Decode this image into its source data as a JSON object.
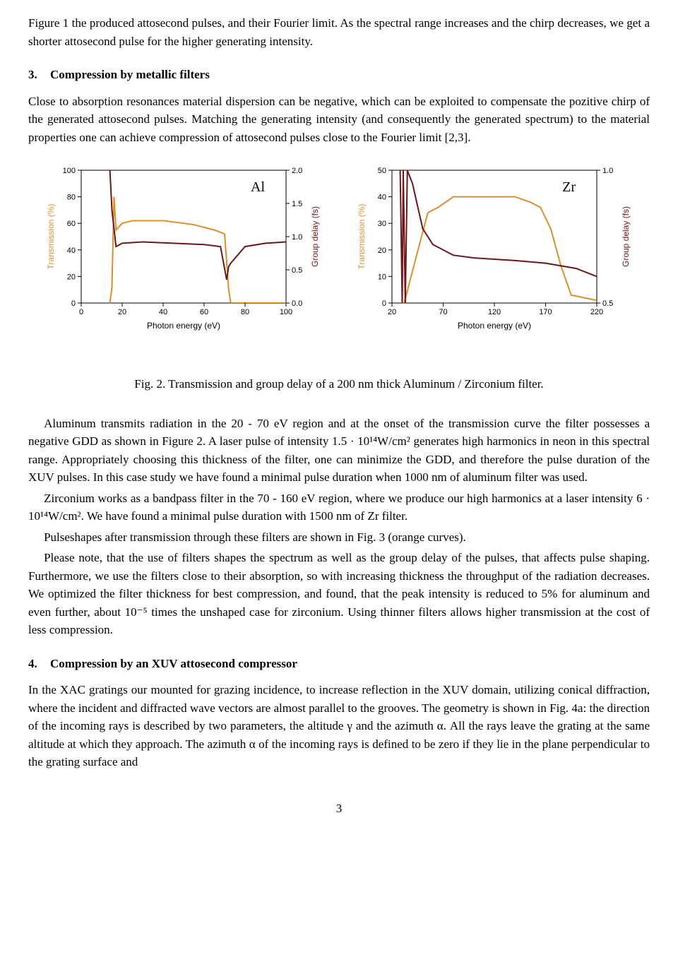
{
  "intro_paragraph": "Figure 1 the produced attosecond pulses, and their Fourier limit. As the spectral range increases and the chirp decreases, we get a shorter attosecond pulse for the higher generating intensity.",
  "section3": {
    "number": "3.",
    "title": "Compression by metallic filters",
    "body": "Close to absorption resonances material dispersion can be negative, which can be exploited to compensate the pozitive chirp of the generated attosecond pulses. Matching the generating intensity (and consequently the generated spectrum) to the material properties one can achieve compression of attosecond pulses close to the Fourier limit [2,3]."
  },
  "figure2": {
    "caption": "Fig. 2. Transmission and group delay of a 200 nm thick Aluminum / Zirconium filter.",
    "x_axis_label": "Photon energy (eV)",
    "y_left_label": "Transmission (%)",
    "y_right_label": "Group delay (fs)",
    "plot_bg": "#ffffff",
    "axis_color": "#000000",
    "transmission_color": "#d98f2e",
    "groupdelay_color": "#6a1818",
    "charts": {
      "Al": {
        "material_label": "Al",
        "xlim": [
          0,
          100
        ],
        "xticks": [
          0,
          20,
          40,
          60,
          80,
          100
        ],
        "y_left_lim": [
          0,
          100
        ],
        "y_left_ticks": [
          0,
          20,
          40,
          60,
          80,
          100
        ],
        "y_right_lim": [
          0.0,
          2.0
        ],
        "y_right_ticks": [
          0.0,
          0.5,
          1.0,
          1.5,
          2.0
        ],
        "transmission_xy": [
          [
            14,
            0
          ],
          [
            15,
            12
          ],
          [
            16,
            80
          ],
          [
            17,
            55
          ],
          [
            20,
            60
          ],
          [
            25,
            62
          ],
          [
            40,
            62
          ],
          [
            55,
            59
          ],
          [
            65,
            55
          ],
          [
            70,
            52
          ],
          [
            72,
            10
          ],
          [
            73,
            0
          ],
          [
            100,
            0
          ]
        ],
        "groupdelay_xy": [
          [
            14,
            2.0
          ],
          [
            15,
            1.4
          ],
          [
            17,
            0.85
          ],
          [
            20,
            0.9
          ],
          [
            30,
            0.92
          ],
          [
            45,
            0.9
          ],
          [
            60,
            0.88
          ],
          [
            68,
            0.85
          ],
          [
            71,
            0.35
          ],
          [
            72,
            0.55
          ],
          [
            73,
            0.6
          ],
          [
            80,
            0.85
          ],
          [
            90,
            0.9
          ],
          [
            100,
            0.92
          ]
        ]
      },
      "Zr": {
        "material_label": "Zr",
        "xlim": [
          20,
          220
        ],
        "xticks": [
          20,
          70,
          120,
          170,
          220
        ],
        "y_left_lim": [
          0,
          50
        ],
        "y_left_ticks": [
          0,
          10,
          20,
          30,
          40,
          50
        ],
        "y_right_lim": [
          0.5,
          1.0
        ],
        "y_right_ticks": [
          0.5,
          1.0
        ],
        "transmission_xy": [
          [
            28,
            0
          ],
          [
            32,
            0
          ],
          [
            40,
            12
          ],
          [
            55,
            34
          ],
          [
            65,
            36
          ],
          [
            80,
            40
          ],
          [
            95,
            40
          ],
          [
            120,
            40
          ],
          [
            140,
            40
          ],
          [
            155,
            38
          ],
          [
            165,
            36
          ],
          [
            175,
            28
          ],
          [
            185,
            14
          ],
          [
            195,
            3
          ],
          [
            220,
            1
          ]
        ],
        "groupdelay_xy": [
          [
            28,
            1.0
          ],
          [
            30,
            0.5
          ],
          [
            31,
            1.0
          ],
          [
            33,
            0.5
          ],
          [
            35,
            1.0
          ],
          [
            40,
            0.95
          ],
          [
            50,
            0.78
          ],
          [
            60,
            0.72
          ],
          [
            80,
            0.68
          ],
          [
            100,
            0.67
          ],
          [
            140,
            0.66
          ],
          [
            170,
            0.65
          ],
          [
            200,
            0.63
          ],
          [
            220,
            0.6
          ]
        ]
      }
    }
  },
  "para_aluminum": "Aluminum transmits radiation in the 20 - 70 eV region and at the onset of the transmission curve the filter possesses a negative GDD as shown in Figure 2. A laser pulse of intensity 1.5 · 10¹⁴W/cm² generates high harmonics in neon in this spectral range. Appropriately choosing this thickness of the filter, one can minimize the GDD, and therefore the pulse duration of the XUV pulses. In this case study we have found a minimal pulse duration when 1000 nm of aluminum filter was used.",
  "para_zirconium": "Zirconium works as a bandpass filter in the 70 - 160 eV region, where we produce our high harmonics at a laser intensity 6 · 10¹⁴W/cm². We have found a minimal pulse duration with 1500 nm of Zr filter.",
  "para_pulseshapes": "Pulseshapes after transmission through these filters are shown in Fig. 3 (orange curves).",
  "para_note": "Please note, that the use of filters shapes the spectrum as well as the group delay of the pulses, that affects pulse shaping. Furthermore, we use the filters close to their absorption, so with increasing thickness the throughput of the radiation decreases. We optimized the filter thickness for best compression, and found, that the peak intensity is reduced to 5% for aluminum and even further, about 10⁻⁵ times the unshaped case for zirconium. Using thinner filters allows higher transmission at the cost of less compression.",
  "section4": {
    "number": "4.",
    "title": "Compression by an XUV attosecond compressor",
    "body": "In the XAC gratings our mounted for grazing incidence, to increase reflection in the XUV domain, utilizing conical diffraction, where the incident and diffracted wave vectors are almost parallel to the grooves. The geometry is shown in Fig. 4a: the direction of the incoming rays is described by two parameters, the altitude γ and the azimuth α. All the rays leave the grating at the same altitude at which they approach. The azimuth α of the incoming rays is defined to be zero if they lie in the plane perpendicular to the grating surface and"
  },
  "page_number": "3"
}
